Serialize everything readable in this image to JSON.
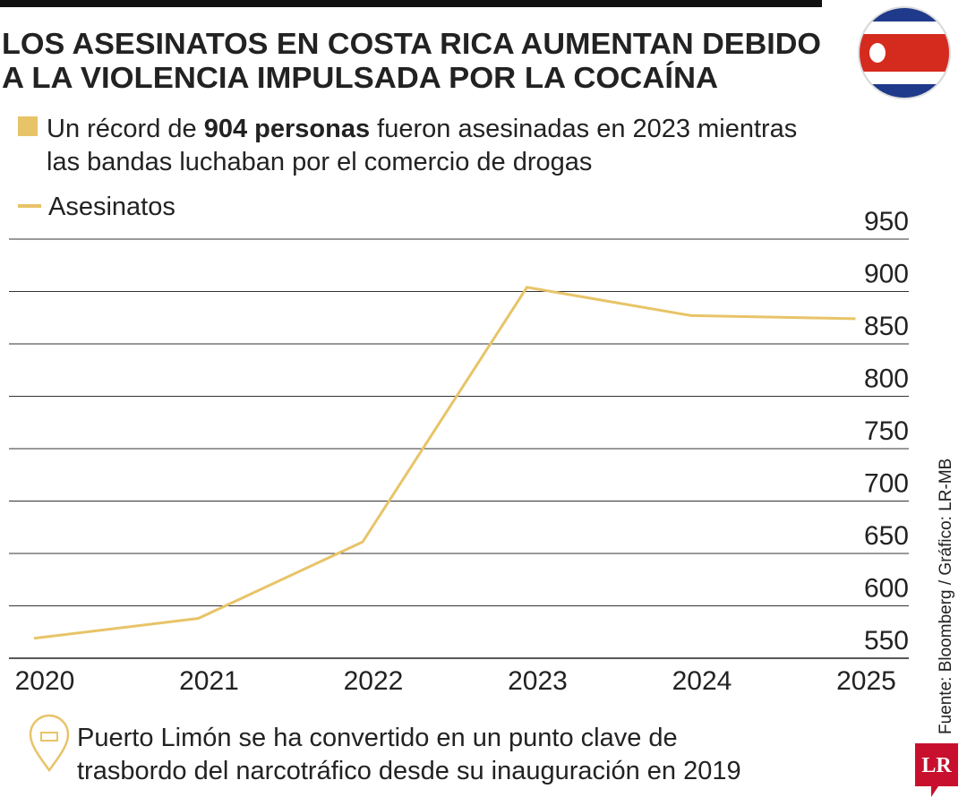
{
  "chart_data": {
    "type": "line",
    "title": [
      "LOS ASESINATOS EN COSTA RICA AUMENTAN DEBIDO",
      "A LA VIOLENCIA IMPULSADA POR LA COCAÍNA"
    ],
    "subtitle": [
      "Un récord de",
      "904 personas",
      "fueron asesinadas en 2023 mientras",
      "las bandas luchaban por el comercio de drogas"
    ],
    "categories": [
      "2020",
      "2021",
      "2022",
      "2023",
      "2024",
      "2025"
    ],
    "series": [
      {
        "name": "Asesinatos",
        "color": "#e8c468",
        "values": [
          569,
          588,
          661,
          904,
          877,
          874
        ]
      }
    ],
    "ylim": [
      550,
      950
    ],
    "yticks": [
      550,
      600,
      650,
      700,
      750,
      800,
      850,
      900,
      950
    ],
    "grid": true,
    "source": "Fuente: Bloomberg  / Gráfico: LR-MB",
    "note": [
      "Puerto Limón se ha convertido en un punto clave de",
      "trasbordo del narcotráfico desde su inauguración en 2019"
    ],
    "logo": "LR"
  }
}
